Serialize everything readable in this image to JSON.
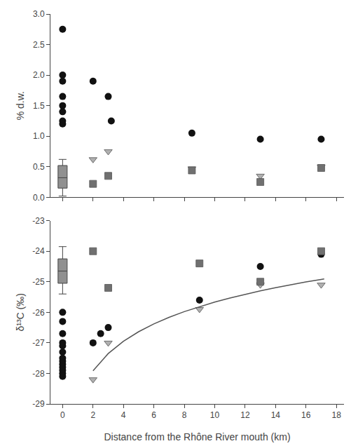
{
  "chart_data": [
    {
      "type": "scatter",
      "ylabel": "% d.w.",
      "xlim": [
        -0.8,
        18.5
      ],
      "xticks": [
        0,
        2,
        4,
        6,
        8,
        10,
        12,
        14,
        16,
        18
      ],
      "ylim": [
        0.0,
        3.0
      ],
      "yticks": [
        {
          "value": 0.0,
          "label": "0.0"
        },
        0.5,
        {
          "value": 1.0,
          "label": "1.0"
        },
        1.5,
        {
          "value": 2.0,
          "label": "2.0"
        },
        2.5,
        {
          "value": 3.0,
          "label": "3.0"
        }
      ],
      "grid": false,
      "tick_labels": "y",
      "series": [
        {
          "type": "scatter",
          "marker": "circle",
          "color": "#111111",
          "x": [
            0,
            0,
            0,
            0,
            0,
            0,
            0,
            0
          ],
          "values": [
            2.75,
            2.0,
            1.9,
            1.65,
            1.5,
            1.4,
            1.25,
            1.2
          ]
        },
        {
          "type": "scatter",
          "marker": "circle",
          "color": "#111111",
          "x": [
            2.0,
            3.0,
            3.2,
            8.5,
            13.0,
            17.0
          ],
          "values": [
            1.9,
            1.65,
            1.25,
            1.05,
            0.95,
            0.95
          ]
        },
        {
          "type": "box",
          "color": "#909090",
          "x": 0,
          "whisker_low": 0.02,
          "q1": 0.15,
          "median": 0.32,
          "q3": 0.52,
          "whisker_high": 0.62
        },
        {
          "type": "scatter",
          "marker": "triangle-down",
          "color": "#b0b0b0",
          "x": [
            2.0,
            3.0,
            8.5,
            13.0,
            17.0
          ],
          "values": [
            0.62,
            0.75,
            0.47,
            0.35,
            0.5
          ]
        },
        {
          "type": "scatter",
          "marker": "square",
          "color": "#707070",
          "x": [
            2.0,
            3.0,
            8.5,
            13.0,
            17.0
          ],
          "values": [
            0.22,
            0.35,
            0.44,
            0.25,
            0.48
          ]
        }
      ]
    },
    {
      "type": "scatter",
      "ylabel": "δ¹³C (‰)",
      "xlabel": "Distance from the Rhône River mouth (km)",
      "xlim": [
        -0.8,
        18.5
      ],
      "xticks": [
        0,
        2,
        4,
        6,
        8,
        10,
        12,
        14,
        16,
        18
      ],
      "ylim": [
        -29.0,
        -23.0
      ],
      "yticks": [
        -29,
        -28,
        -27,
        -26,
        -25,
        -24,
        -23
      ],
      "grid": false,
      "series": [
        {
          "type": "scatter",
          "marker": "circle",
          "color": "#111111",
          "x": [
            0,
            0,
            0,
            0,
            0,
            0,
            0,
            0,
            0,
            0,
            0,
            0,
            0
          ],
          "values": [
            -26.0,
            -26.3,
            -26.7,
            -27.0,
            -27.1,
            -27.3,
            -27.5,
            -27.6,
            -27.7,
            -27.8,
            -27.9,
            -28.0,
            -28.1
          ]
        },
        {
          "type": "scatter",
          "marker": "circle",
          "color": "#111111",
          "x": [
            2.0,
            2.5,
            3.0,
            9.0,
            13.0,
            17.0
          ],
          "values": [
            -27.0,
            -26.7,
            -26.5,
            -25.6,
            -24.5,
            -24.1
          ]
        },
        {
          "type": "box",
          "color": "#909090",
          "x": 0,
          "whisker_low": -25.4,
          "q1": -25.05,
          "median": -24.65,
          "q3": -24.25,
          "whisker_high": -23.85
        },
        {
          "type": "scatter",
          "marker": "triangle-down",
          "color": "#b0b0b0",
          "x": [
            2.0,
            3.0,
            9.0,
            13.0,
            17.0
          ],
          "values": [
            -28.2,
            -27.0,
            -25.9,
            -25.1,
            -25.1
          ]
        },
        {
          "type": "scatter",
          "marker": "square",
          "color": "#707070",
          "x": [
            2.0,
            3.0,
            9.0,
            13.0,
            17.0
          ],
          "values": [
            -24.0,
            -25.2,
            -24.4,
            -25.0,
            -24.0
          ]
        },
        {
          "type": "line",
          "line_style": "solid",
          "color": "#555555",
          "x": [
            2,
            3,
            4,
            5,
            6,
            7,
            8,
            9,
            10,
            11,
            12,
            13,
            14,
            15,
            16,
            17,
            17.2
          ],
          "values": [
            -27.9175,
            -27.35,
            -26.9474,
            -26.6351,
            -26.3799,
            -26.1642,
            -25.9773,
            -25.8124,
            -25.6649,
            -25.5316,
            -25.4098,
            -25.2977,
            -25.194,
            -25.0975,
            -25.0071,
            -24.9223,
            -24.9059
          ]
        }
      ]
    }
  ]
}
